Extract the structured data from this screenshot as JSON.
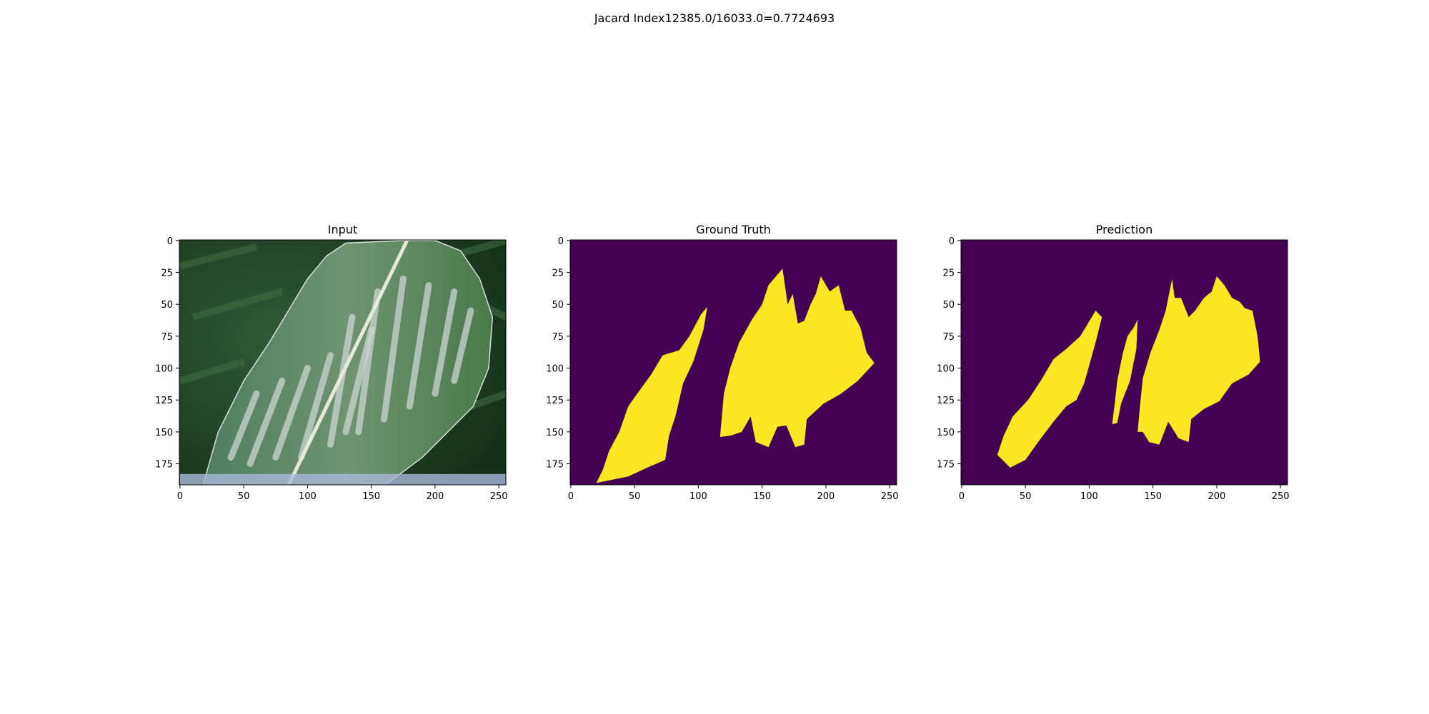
{
  "figure": {
    "suptitle": "Jacard Index12385.0/16033.0=0.7724693"
  },
  "colors": {
    "mask_background": "#440154",
    "mask_foreground": "#fde725",
    "leaf_dark": "#1f3a1c",
    "leaf_green": "#5c8a5c",
    "leaf_pale": "#c9d6d0",
    "leaf_blue": "#a9b9d8"
  },
  "chart_data": [
    {
      "type": "image",
      "title": "Input",
      "content": "RGB photo of a corn leaf with pale lesion streaks",
      "x_ticks": [
        0,
        50,
        100,
        150,
        200,
        250
      ],
      "y_ticks": [
        0,
        25,
        50,
        75,
        100,
        125,
        150,
        175
      ],
      "xlim": [
        -0.5,
        255.5
      ],
      "ylim": [
        191.5,
        -0.5
      ]
    },
    {
      "type": "heatmap",
      "title": "Ground Truth",
      "content": "binary segmentation mask (yellow = lesion)",
      "x_ticks": [
        0,
        50,
        100,
        150,
        200,
        250
      ],
      "y_ticks": [
        0,
        25,
        50,
        75,
        100,
        125,
        150,
        175
      ],
      "xlim": [
        -0.5,
        255.5
      ],
      "ylim": [
        191.5,
        -0.5
      ],
      "regions": [
        [
          [
            20,
            190
          ],
          [
            25,
            180
          ],
          [
            30,
            165
          ],
          [
            38,
            150
          ],
          [
            45,
            130
          ],
          [
            55,
            116
          ],
          [
            63,
            105
          ],
          [
            72,
            90
          ],
          [
            85,
            86
          ],
          [
            93,
            75
          ],
          [
            102,
            58
          ],
          [
            107,
            52
          ],
          [
            104,
            70
          ],
          [
            96,
            95
          ],
          [
            88,
            112
          ],
          [
            82,
            138
          ],
          [
            77,
            153
          ],
          [
            74,
            172
          ],
          [
            60,
            178
          ],
          [
            45,
            185
          ],
          [
            30,
            188
          ]
        ],
        [
          [
            117,
            154
          ],
          [
            120,
            120
          ],
          [
            125,
            100
          ],
          [
            132,
            80
          ],
          [
            142,
            62
          ],
          [
            150,
            50
          ],
          [
            155,
            35
          ],
          [
            166,
            22
          ],
          [
            170,
            50
          ],
          [
            174,
            42
          ],
          [
            178,
            65
          ],
          [
            183,
            63
          ],
          [
            188,
            50
          ],
          [
            192,
            42
          ],
          [
            196,
            28
          ],
          [
            203,
            40
          ],
          [
            210,
            35
          ],
          [
            215,
            55
          ],
          [
            220,
            55
          ],
          [
            227,
            68
          ],
          [
            232,
            88
          ],
          [
            238,
            96
          ],
          [
            225,
            110
          ],
          [
            212,
            120
          ],
          [
            198,
            128
          ],
          [
            185,
            140
          ],
          [
            183,
            160
          ],
          [
            176,
            162
          ],
          [
            169,
            145
          ],
          [
            162,
            146
          ],
          [
            155,
            162
          ],
          [
            145,
            158
          ],
          [
            141,
            138
          ],
          [
            134,
            150
          ],
          [
            125,
            153
          ]
        ]
      ]
    },
    {
      "type": "heatmap",
      "title": "Prediction",
      "content": "binary segmentation mask (yellow = predicted lesion)",
      "x_ticks": [
        0,
        50,
        100,
        150,
        200,
        250
      ],
      "y_ticks": [
        0,
        25,
        50,
        75,
        100,
        125,
        150,
        175
      ],
      "xlim": [
        -0.5,
        255.5
      ],
      "ylim": [
        191.5,
        -0.5
      ],
      "regions": [
        [
          [
            28,
            168
          ],
          [
            33,
            153
          ],
          [
            40,
            138
          ],
          [
            52,
            125
          ],
          [
            62,
            110
          ],
          [
            72,
            93
          ],
          [
            82,
            85
          ],
          [
            93,
            75
          ],
          [
            105,
            55
          ],
          [
            110,
            60
          ],
          [
            105,
            80
          ],
          [
            100,
            98
          ],
          [
            96,
            112
          ],
          [
            90,
            125
          ],
          [
            82,
            130
          ],
          [
            72,
            142
          ],
          [
            60,
            158
          ],
          [
            50,
            172
          ],
          [
            38,
            178
          ]
        ],
        [
          [
            118,
            144
          ],
          [
            120,
            128
          ],
          [
            122,
            110
          ],
          [
            126,
            90
          ],
          [
            130,
            75
          ],
          [
            135,
            68
          ],
          [
            138,
            62
          ],
          [
            137,
            85
          ],
          [
            132,
            110
          ],
          [
            125,
            128
          ],
          [
            122,
            143
          ]
        ],
        [
          [
            138,
            150
          ],
          [
            140,
            128
          ],
          [
            142,
            108
          ],
          [
            148,
            88
          ],
          [
            155,
            70
          ],
          [
            160,
            55
          ],
          [
            165,
            30
          ],
          [
            167,
            45
          ],
          [
            172,
            45
          ],
          [
            178,
            60
          ],
          [
            183,
            55
          ],
          [
            190,
            45
          ],
          [
            196,
            40
          ],
          [
            200,
            28
          ],
          [
            206,
            35
          ],
          [
            212,
            45
          ],
          [
            218,
            48
          ],
          [
            222,
            53
          ],
          [
            228,
            55
          ],
          [
            232,
            75
          ],
          [
            234,
            95
          ],
          [
            225,
            105
          ],
          [
            212,
            112
          ],
          [
            202,
            126
          ],
          [
            190,
            132
          ],
          [
            180,
            140
          ],
          [
            178,
            158
          ],
          [
            170,
            155
          ],
          [
            162,
            142
          ],
          [
            155,
            160
          ],
          [
            147,
            158
          ],
          [
            142,
            150
          ]
        ]
      ]
    }
  ]
}
